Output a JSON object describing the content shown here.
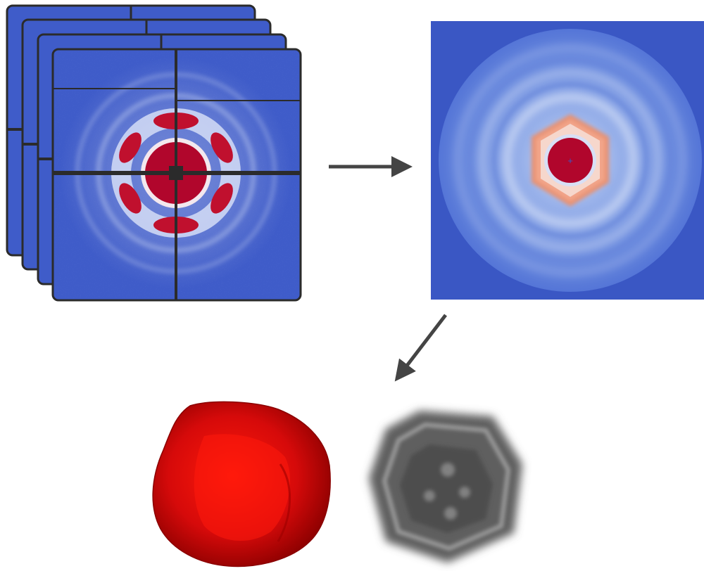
{
  "figure": {
    "stages": [
      {
        "id": "diffraction-pattern-stack",
        "frames": 4
      },
      {
        "id": "merged-3d-intensity"
      },
      {
        "id": "reconstructed-density-surface"
      },
      {
        "id": "reconstructed-density-projection"
      }
    ],
    "arrows": [
      "arrow-right",
      "arrow-down-left"
    ],
    "colors": {
      "detector_blue": "#3f5cc9",
      "detector_frame": "#2b2b2b",
      "intensity_red": "#b1062c",
      "merged_background": "#3a57c4",
      "surface_red": "#d40a0a",
      "projection_gray": "#666666",
      "arrow": "#444444"
    }
  }
}
